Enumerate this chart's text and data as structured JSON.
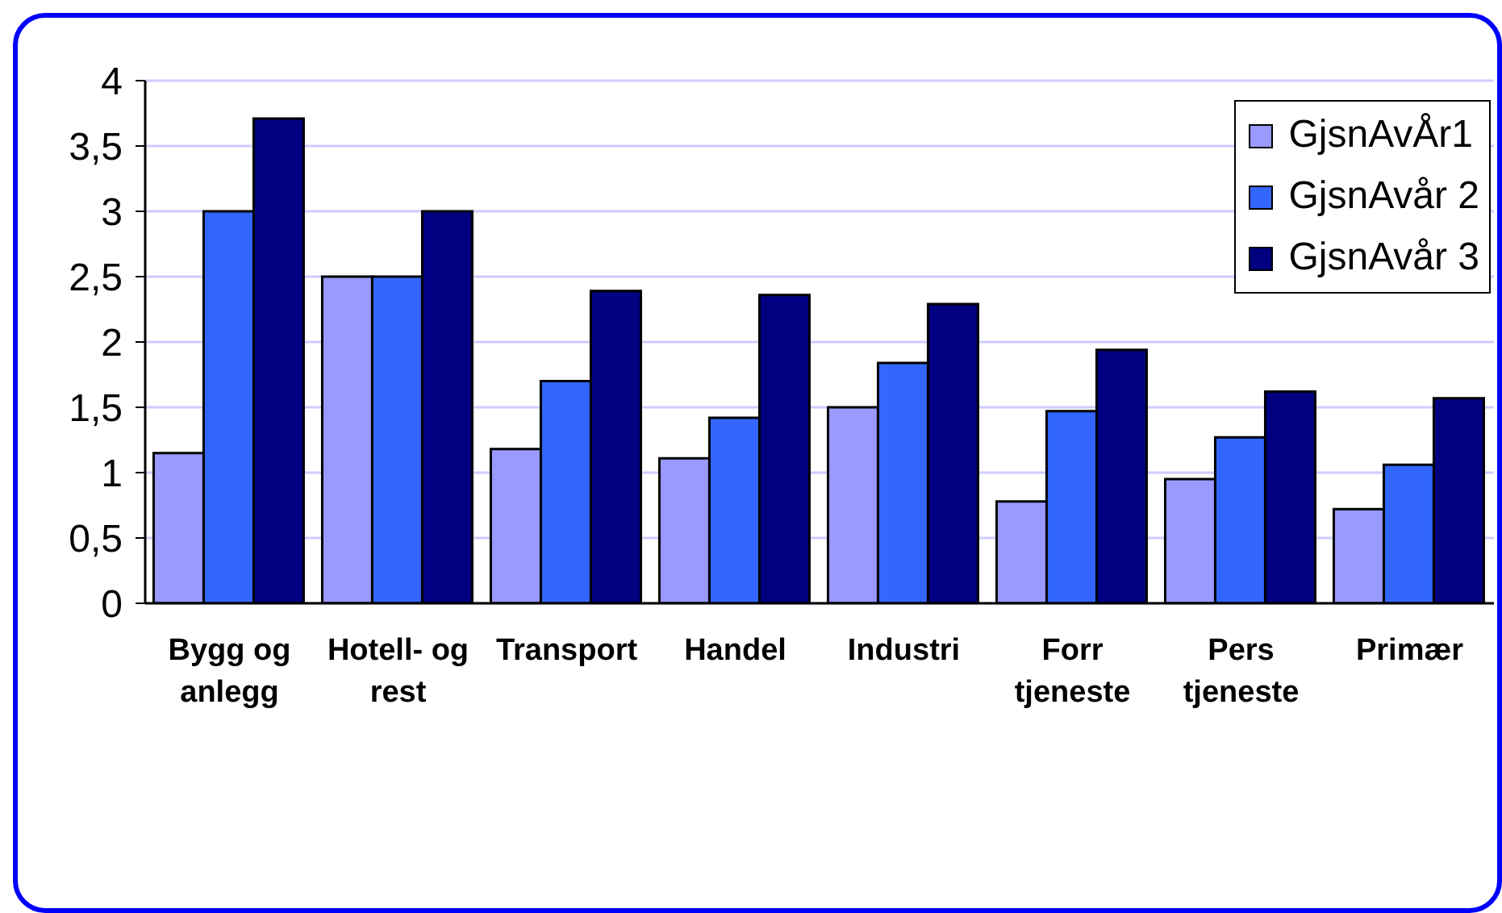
{
  "chart_data": {
    "type": "bar",
    "categories": [
      "Bygg og anlegg",
      "Hotell- og rest",
      "Transport",
      "Handel",
      "Industri",
      "Forr tjeneste",
      "Pers tjeneste",
      "Primær"
    ],
    "series": [
      {
        "name": "GjsnAvÅr1",
        "color": "#9999ff",
        "values": [
          1.15,
          2.5,
          1.18,
          1.11,
          1.5,
          0.78,
          0.95,
          0.72
        ]
      },
      {
        "name": "GjsnAvår 2",
        "color": "#3366ff",
        "values": [
          3.0,
          2.5,
          1.7,
          1.42,
          1.84,
          1.47,
          1.27,
          1.06
        ]
      },
      {
        "name": "GjsnAvår 3",
        "color": "#000080",
        "values": [
          3.71,
          3.0,
          2.39,
          2.36,
          2.29,
          1.94,
          1.62,
          1.57
        ]
      }
    ],
    "ylim": [
      0,
      4
    ],
    "yticks": [
      0,
      {
        "value": 0.5,
        "label": "0,5"
      },
      1,
      {
        "value": 1.5,
        "label": "1,5"
      },
      2,
      {
        "value": 2.5,
        "label": "2,5"
      },
      3,
      {
        "value": 3.5,
        "label": "3,5"
      },
      4
    ],
    "grid": "y",
    "legend": "top right"
  }
}
